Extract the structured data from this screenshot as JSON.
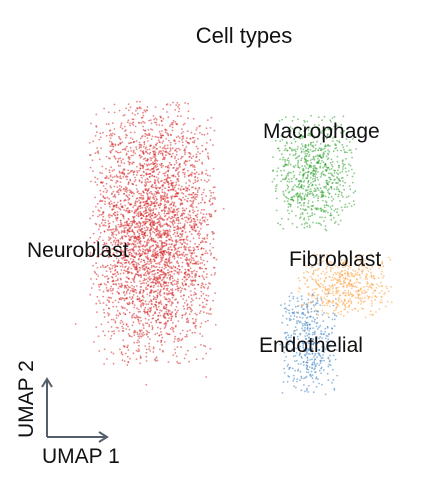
{
  "chart_data": {
    "type": "scatter",
    "title": "Cell types",
    "xlabel": "UMAP 1",
    "ylabel": "UMAP 2",
    "axes_style": "corner-arrows-only",
    "grid": false,
    "legend": "labels placed directly on clusters",
    "series": [
      {
        "name": "Neuroblast",
        "color": "#d62728",
        "label": "Neuroblast",
        "center": [
          -3.8,
          0.6
        ],
        "spread": [
          2.4,
          3.6
        ],
        "relative_size": 1.0
      },
      {
        "name": "Macrophage",
        "color": "#2ca02c",
        "label": "Macrophage",
        "center": [
          2.6,
          2.3
        ],
        "spread": [
          1.6,
          1.6
        ],
        "relative_size": 0.22
      },
      {
        "name": "Fibroblast",
        "color": "#ff9f3a",
        "label": "Fibroblast",
        "center": [
          3.8,
          -0.9
        ],
        "spread": [
          1.8,
          0.9
        ],
        "relative_size": 0.14
      },
      {
        "name": "Endothelial",
        "color": "#3a7fc1",
        "label": "Endothelial",
        "center": [
          2.4,
          -2.6
        ],
        "spread": [
          1.1,
          1.4
        ],
        "relative_size": 0.12
      }
    ]
  }
}
